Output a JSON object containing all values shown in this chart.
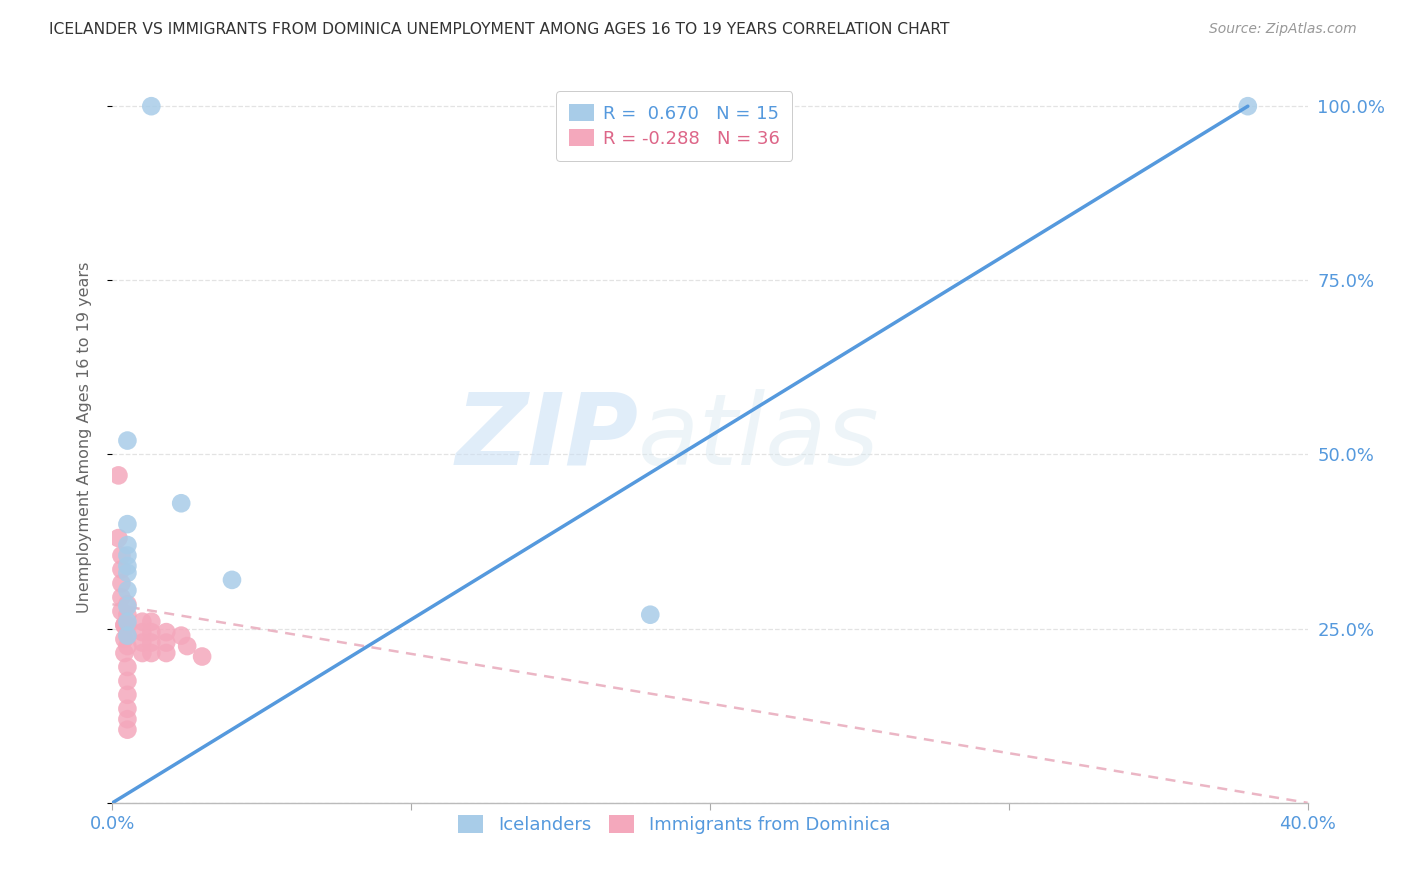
{
  "title": "ICELANDER VS IMMIGRANTS FROM DOMINICA UNEMPLOYMENT AMONG AGES 16 TO 19 YEARS CORRELATION CHART",
  "source": "Source: ZipAtlas.com",
  "ylabel_label": "Unemployment Among Ages 16 to 19 years",
  "watermark_zip": "ZIP",
  "watermark_atlas": "atlas",
  "xlim": [
    0.0,
    0.4
  ],
  "ylim": [
    0.0,
    1.05
  ],
  "icelanders_color": "#a8cce8",
  "dominica_color": "#f4a8bc",
  "icelanders_line_color": "#5599dd",
  "dominica_line_color": "#e8aabb",
  "legend_R_iceland": " 0.670",
  "legend_N_iceland": "15",
  "legend_R_dominica": "-0.288",
  "legend_N_dominica": "36",
  "iceland_line_x0": 0.0,
  "iceland_line_y0": 0.0,
  "iceland_line_x1": 0.38,
  "iceland_line_y1": 1.0,
  "dominica_line_x0": 0.0,
  "dominica_line_y0": 0.285,
  "dominica_line_x1": 0.4,
  "dominica_line_y1": 0.0,
  "iceland_scatter_x": [
    0.013,
    0.005,
    0.005,
    0.005,
    0.005,
    0.023,
    0.04,
    0.005,
    0.005,
    0.005,
    0.005,
    0.005,
    0.005,
    0.18,
    0.38
  ],
  "iceland_scatter_y": [
    1.0,
    0.52,
    0.4,
    0.37,
    0.34,
    0.43,
    0.32,
    0.355,
    0.33,
    0.305,
    0.282,
    0.26,
    0.24,
    0.27,
    1.0
  ],
  "dominica_scatter_x": [
    0.002,
    0.002,
    0.003,
    0.003,
    0.003,
    0.003,
    0.003,
    0.004,
    0.004,
    0.004,
    0.004,
    0.005,
    0.005,
    0.005,
    0.005,
    0.005,
    0.005,
    0.005,
    0.005,
    0.005,
    0.005,
    0.005,
    0.01,
    0.01,
    0.01,
    0.01,
    0.013,
    0.013,
    0.013,
    0.013,
    0.018,
    0.018,
    0.018,
    0.023,
    0.025,
    0.03
  ],
  "dominica_scatter_y": [
    0.47,
    0.38,
    0.355,
    0.335,
    0.315,
    0.295,
    0.275,
    0.255,
    0.255,
    0.235,
    0.215,
    0.195,
    0.175,
    0.155,
    0.135,
    0.12,
    0.105,
    0.285,
    0.27,
    0.255,
    0.24,
    0.225,
    0.26,
    0.245,
    0.23,
    0.215,
    0.26,
    0.245,
    0.23,
    0.215,
    0.245,
    0.23,
    0.215,
    0.24,
    0.225,
    0.21
  ],
  "grid_color": "#dddddd",
  "background_color": "#ffffff",
  "title_color": "#333333",
  "axis_color": "#5599dd",
  "dot_size": 180
}
